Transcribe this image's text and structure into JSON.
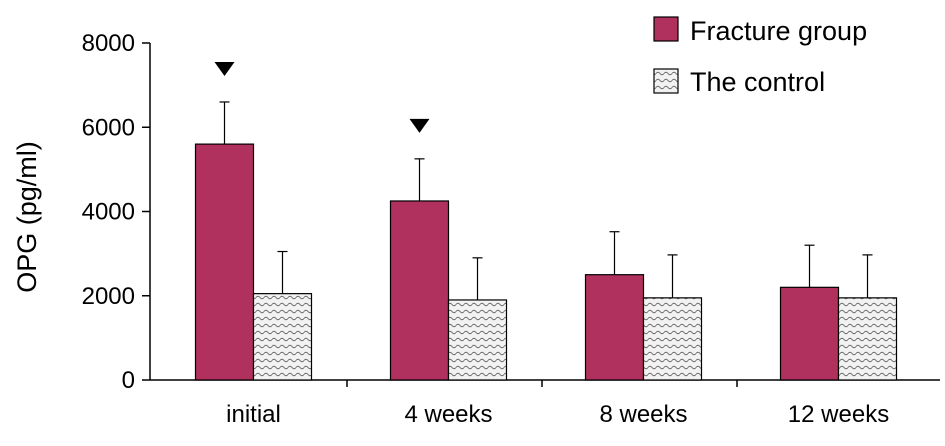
{
  "chart_data": {
    "type": "bar",
    "title": "",
    "xlabel": "",
    "ylabel": "OPG (pg/ml)",
    "ylim": [
      0,
      8000
    ],
    "yticks": [
      0,
      2000,
      4000,
      6000,
      8000
    ],
    "ytick_labels": [
      "0",
      "2000",
      "4000",
      "6000",
      "8000"
    ],
    "categories": [
      "initial",
      "4 weeks",
      "8 weeks",
      "12 weeks"
    ],
    "grid": false,
    "legend_position": "top-right",
    "series": [
      {
        "name": "Fracture group",
        "values": [
          5600,
          4250,
          2500,
          2200
        ],
        "errors": [
          1000,
          1000,
          1020,
          1000
        ],
        "color": "#b0305e",
        "pattern": "solid"
      },
      {
        "name": "The control",
        "values": [
          2050,
          1900,
          1950,
          1950
        ],
        "errors": [
          1000,
          1000,
          1020,
          1020
        ],
        "color": "#e6e6e6",
        "pattern": "wavy-hatch"
      }
    ],
    "significance_markers": [
      {
        "category": "initial",
        "series": "Fracture group",
        "symbol": "▼"
      },
      {
        "category": "4 weeks",
        "series": "Fracture group",
        "symbol": "▼"
      }
    ]
  }
}
